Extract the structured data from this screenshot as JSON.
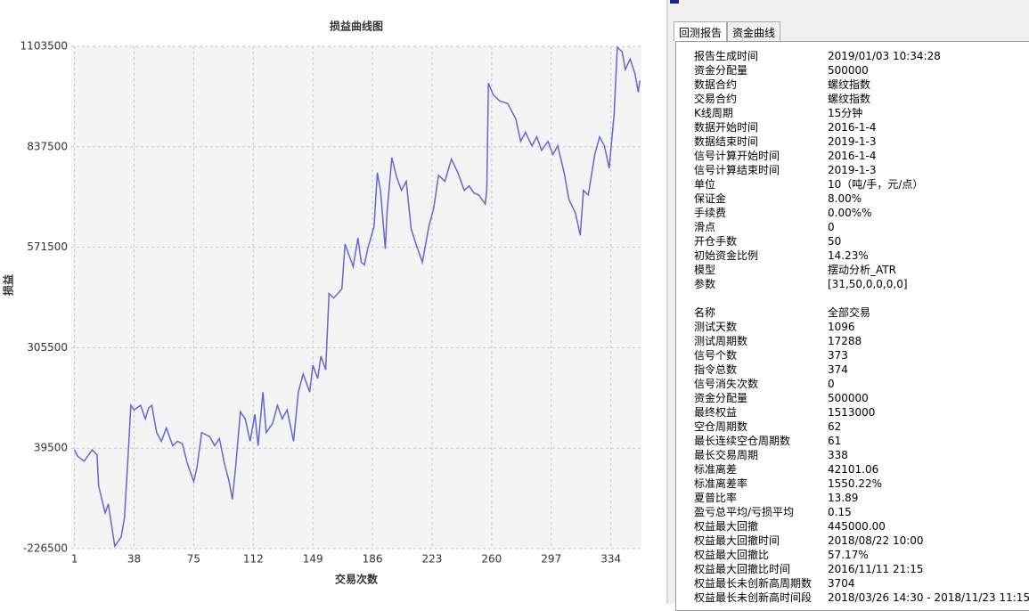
{
  "chart_data": {
    "type": "line",
    "title": "损益曲线图",
    "x_label": "交易次数",
    "y_label": "损益",
    "xlim": [
      -1,
      353
    ],
    "xticks": [
      1,
      38,
      75,
      112,
      149,
      186,
      223,
      260,
      297,
      334
    ],
    "ylim": [
      -226500,
      1103500
    ],
    "yticks": [
      -226500,
      39500,
      305500,
      571500,
      837500,
      1103500
    ],
    "grid": true,
    "series": [
      {
        "color": "#6a64d2",
        "x": [
          1,
          3,
          7,
          12,
          15,
          16,
          20,
          22,
          26,
          30,
          32,
          34,
          36,
          38,
          42,
          45,
          47,
          49,
          52,
          55,
          58,
          62,
          65,
          68,
          71,
          75,
          77,
          80,
          85,
          88,
          91,
          94,
          97,
          99,
          101,
          104,
          107,
          110,
          113,
          115,
          118,
          120,
          124,
          127,
          130,
          133,
          137,
          140,
          143,
          147,
          149,
          152,
          154,
          157,
          159,
          162,
          167,
          169,
          171,
          174,
          177,
          179,
          181,
          183,
          187,
          189,
          191,
          194,
          195,
          198,
          201,
          204,
          207,
          210,
          213,
          217,
          221,
          224,
          227,
          231,
          235,
          239,
          243,
          246,
          249,
          252,
          256,
          257,
          258,
          261,
          265,
          270,
          275,
          278,
          281,
          285,
          288,
          291,
          295,
          298,
          301,
          305,
          308,
          312,
          315,
          317,
          320,
          324,
          327,
          330,
          333,
          336,
          338,
          341,
          343,
          346,
          349,
          351,
          352
        ],
        "values": [
          35000,
          18000,
          5000,
          35000,
          22000,
          -60000,
          -132000,
          -108000,
          -220000,
          -196000,
          -144000,
          0,
          153000,
          141000,
          153000,
          117000,
          146000,
          153000,
          81000,
          58000,
          93000,
          46000,
          58000,
          51000,
          0,
          -49000,
          -13000,
          81000,
          70000,
          46000,
          65000,
          0,
          -49000,
          -96000,
          -13000,
          136000,
          117000,
          58000,
          129000,
          46000,
          188000,
          81000,
          105000,
          153000,
          117000,
          141000,
          58000,
          188000,
          236000,
          188000,
          259000,
          224000,
          283000,
          247000,
          449000,
          437000,
          461000,
          580000,
          556000,
          520000,
          596000,
          532000,
          525000,
          567000,
          627000,
          769000,
          722000,
          567000,
          662000,
          809000,
          757000,
          722000,
          746000,
          620000,
          580000,
          532000,
          627000,
          674000,
          762000,
          746000,
          805000,
          769000,
          722000,
          734000,
          715000,
          710000,
          686000,
          722000,
          1006000,
          975000,
          959000,
          952000,
          911000,
          852000,
          876000,
          840000,
          864000,
          828000,
          852000,
          817000,
          840000,
          769000,
          698000,
          662000,
          603000,
          722000,
          710000,
          817000,
          864000,
          840000,
          781000,
          923000,
          1101000,
          1089000,
          1042000,
          1070000,
          1030000,
          982000,
          1013000
        ]
      }
    ]
  },
  "report": {
    "tabs": [
      "回测报告",
      "资金曲线"
    ],
    "sections": [
      {
        "rows": [
          [
            "报告生成时间",
            "2019/01/03 10:34:28"
          ],
          [
            "资金分配量",
            "500000"
          ],
          [
            "数据合约",
            "螺纹指数"
          ],
          [
            "交易合约",
            "螺纹指数"
          ],
          [
            "K线周期",
            "15分钟"
          ],
          [
            "数据开始时间",
            "2016-1-4"
          ],
          [
            "数据结束时间",
            "2019-1-3"
          ],
          [
            "信号计算开始时间",
            "2016-1-4"
          ],
          [
            "信号计算结束时间",
            "2019-1-3"
          ],
          [
            "单位",
            "10（吨/手，元/点）"
          ],
          [
            "保证金",
            "8.00%"
          ],
          [
            "手续费",
            "0.00%%"
          ],
          [
            "滑点",
            "0"
          ],
          [
            "开仓手数",
            "50"
          ],
          [
            "初始资金比例",
            "14.23%"
          ],
          [
            "模型",
            "摆动分析_ATR"
          ],
          [
            "参数",
            "[31,50,0,0,0,0]"
          ]
        ]
      },
      {
        "rows": [
          [
            "名称",
            "全部交易"
          ],
          [
            "测试天数",
            "1096"
          ],
          [
            "测试周期数",
            "17288"
          ],
          [
            "信号个数",
            "373"
          ],
          [
            "指令总数",
            "374"
          ],
          [
            "信号消失次数",
            "0"
          ],
          [
            "资金分配量",
            "500000"
          ],
          [
            "最终权益",
            "1513000"
          ],
          [
            "空仓周期数",
            "62"
          ],
          [
            "最长连续空仓周期数",
            "61"
          ],
          [
            "最长交易周期",
            "338"
          ],
          [
            "标准离差",
            "42101.06"
          ],
          [
            "标准离差率",
            "1550.22%"
          ],
          [
            "夏普比率",
            "13.89"
          ],
          [
            "盈亏总平均/亏损平均",
            "0.15"
          ],
          [
            "权益最大回撤",
            "445000.00"
          ],
          [
            "权益最大回撤时间",
            "2018/08/22 10:00"
          ],
          [
            "权益最大回撤比",
            "57.17%"
          ],
          [
            "权益最大回撤比时间",
            "2016/11/11 21:15"
          ],
          [
            "权益最长未创新高周期数",
            "3704"
          ],
          [
            "权益最长未创新高时间段",
            "2018/03/26 14:30 - 2018/11/23 11:15"
          ]
        ]
      }
    ]
  }
}
